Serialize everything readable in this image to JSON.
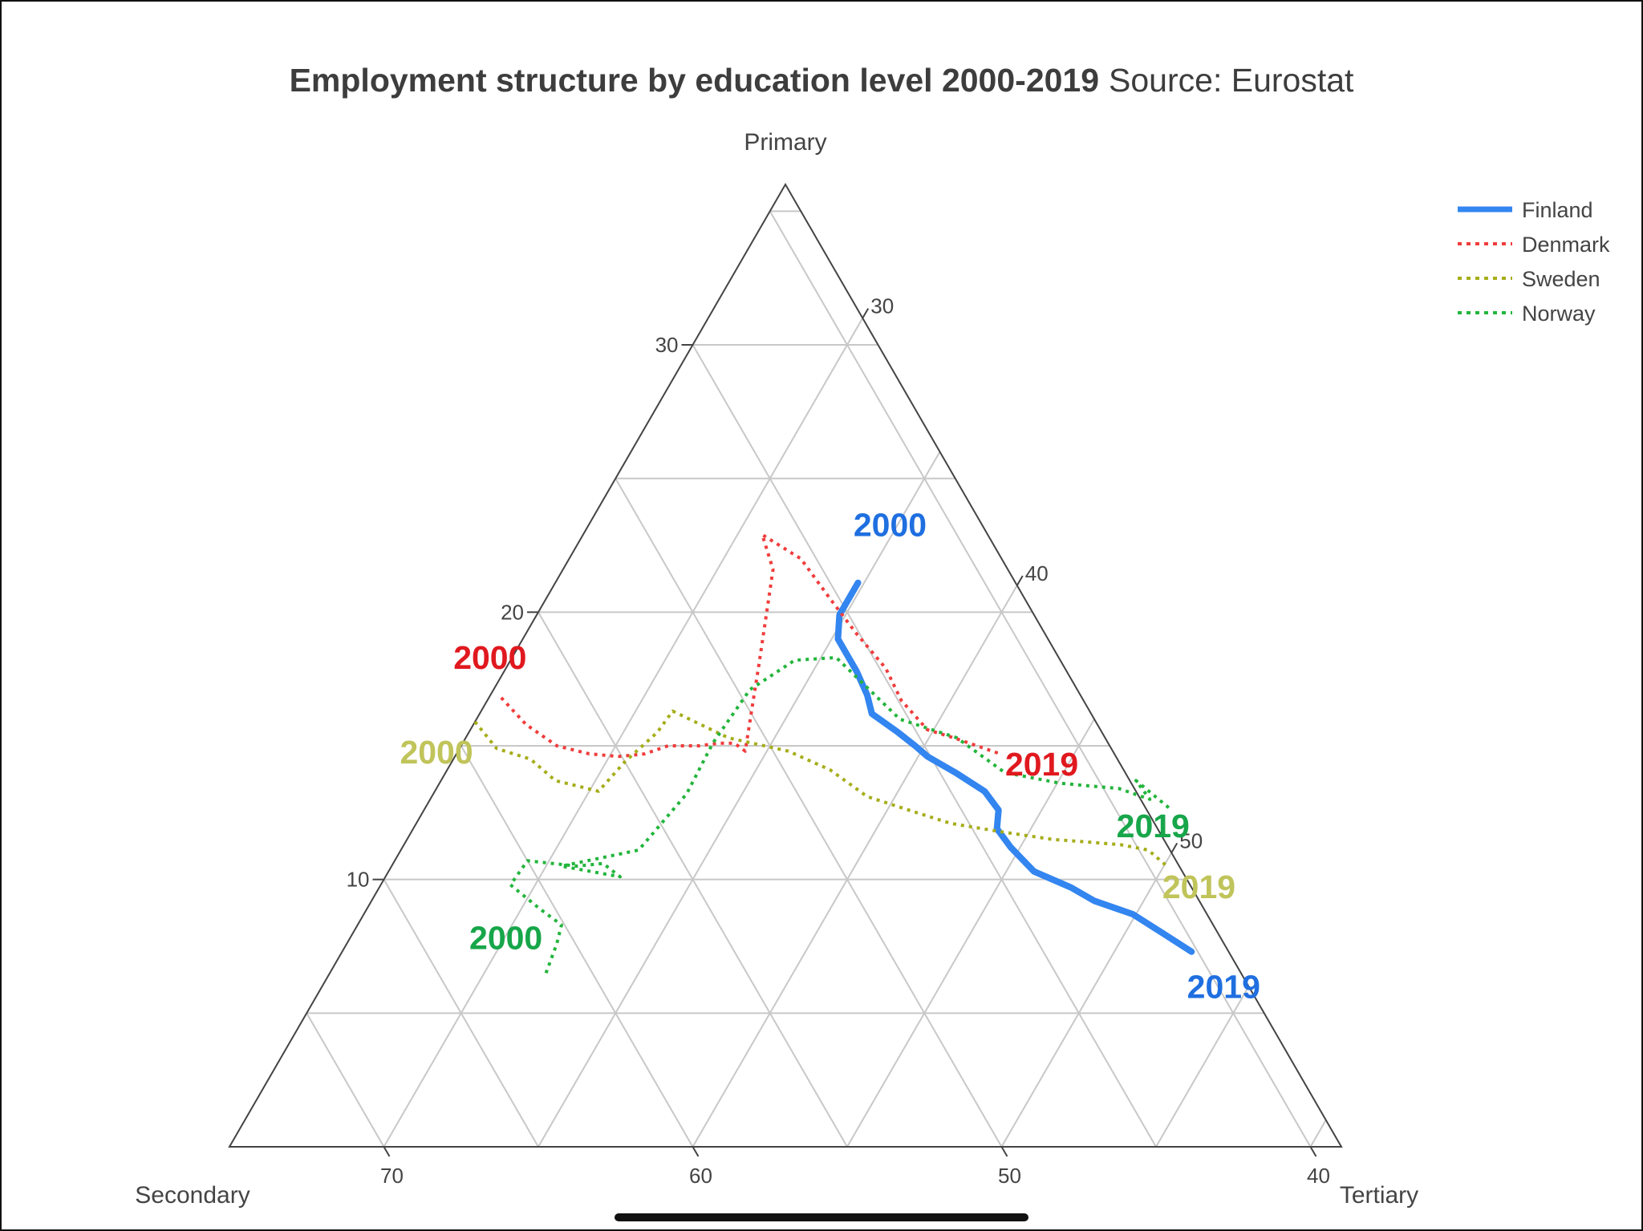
{
  "chart_data": {
    "type": "ternary-line",
    "title": "Employment structure by education level 2000-2019",
    "subtitle": "Source: Eurostat",
    "axes": {
      "top": {
        "label": "Primary",
        "range": [
          0,
          36
        ],
        "ticks": [
          10,
          20,
          30
        ]
      },
      "left": {
        "label": "Secondary",
        "range": [
          39,
          75
        ],
        "ticks": [
          40,
          50,
          60,
          70
        ]
      },
      "right": {
        "label": "Tertiary",
        "range": [
          25,
          61
        ],
        "ticks": [
          30,
          40,
          50
        ]
      }
    },
    "grid": true,
    "legend_position": "top-right",
    "series": [
      {
        "name": "Finland",
        "color": "#3385f0",
        "line": "solid",
        "start_label": "2000",
        "end_label": "2019",
        "points": [
          {
            "primary": 21.1,
            "secondary": 44.1,
            "tertiary": 34.8
          },
          {
            "primary": 20.5,
            "secondary": 44.7,
            "tertiary": 34.8
          },
          {
            "primary": 19.9,
            "secondary": 45.3,
            "tertiary": 34.8
          },
          {
            "primary": 19.0,
            "secondary": 45.8,
            "tertiary": 35.2
          },
          {
            "primary": 18.4,
            "secondary": 45.8,
            "tertiary": 35.8
          },
          {
            "primary": 17.8,
            "secondary": 45.8,
            "tertiary": 36.4
          },
          {
            "primary": 16.9,
            "secondary": 45.9,
            "tertiary": 37.2
          },
          {
            "primary": 16.2,
            "secondary": 46.1,
            "tertiary": 37.7
          },
          {
            "primary": 15.5,
            "secondary": 45.6,
            "tertiary": 38.9
          },
          {
            "primary": 15.0,
            "secondary": 45.3,
            "tertiary": 39.7
          },
          {
            "primary": 14.6,
            "secondary": 45.1,
            "tertiary": 40.3
          },
          {
            "primary": 14.0,
            "secondary": 44.5,
            "tertiary": 41.5
          },
          {
            "primary": 13.3,
            "secondary": 43.9,
            "tertiary": 42.8
          },
          {
            "primary": 12.6,
            "secondary": 43.8,
            "tertiary": 43.6
          },
          {
            "primary": 11.9,
            "secondary": 44.2,
            "tertiary": 43.9
          },
          {
            "primary": 11.2,
            "secondary": 44.1,
            "tertiary": 44.7
          },
          {
            "primary": 10.3,
            "secondary": 43.8,
            "tertiary": 45.9
          },
          {
            "primary": 9.7,
            "secondary": 42.9,
            "tertiary": 47.4
          },
          {
            "primary": 9.2,
            "secondary": 42.4,
            "tertiary": 48.4
          },
          {
            "primary": 8.7,
            "secondary": 41.4,
            "tertiary": 49.9
          },
          {
            "primary": 8.0,
            "secondary": 40.8,
            "tertiary": 51.2
          },
          {
            "primary": 7.3,
            "secondary": 40.2,
            "tertiary": 52.5
          }
        ]
      },
      {
        "name": "Denmark",
        "color": "#f03c3c",
        "line": "dotted",
        "start_label": "2000",
        "end_label": "2019",
        "points": [
          {
            "primary": 16.8,
            "secondary": 57.8,
            "tertiary": 25.4
          },
          {
            "primary": 15.8,
            "secondary": 57.5,
            "tertiary": 26.7
          },
          {
            "primary": 15.0,
            "secondary": 56.9,
            "tertiary": 28.1
          },
          {
            "primary": 14.7,
            "secondary": 56.0,
            "tertiary": 29.3
          },
          {
            "primary": 14.6,
            "secondary": 55.1,
            "tertiary": 30.3
          },
          {
            "primary": 14.7,
            "secondary": 54.2,
            "tertiary": 31.1
          },
          {
            "primary": 15.0,
            "secondary": 53.3,
            "tertiary": 31.7
          },
          {
            "primary": 15.0,
            "secondary": 52.3,
            "tertiary": 32.7
          },
          {
            "primary": 15.1,
            "secondary": 51.6,
            "tertiary": 33.3
          },
          {
            "primary": 15.1,
            "secondary": 51.1,
            "tertiary": 33.8
          },
          {
            "primary": 14.8,
            "secondary": 50.9,
            "tertiary": 34.3
          },
          {
            "primary": 18.1,
            "secondary": 48.8,
            "tertiary": 33.1
          },
          {
            "primary": 21.6,
            "secondary": 46.6,
            "tertiary": 31.8
          },
          {
            "primary": 22.9,
            "secondary": 46.3,
            "tertiary": 30.8
          },
          {
            "primary": 22.0,
            "secondary": 45.5,
            "tertiary": 32.5
          },
          {
            "primary": 20.5,
            "secondary": 45.3,
            "tertiary": 34.2
          },
          {
            "primary": 19.2,
            "secondary": 45.1,
            "tertiary": 35.7
          },
          {
            "primary": 17.9,
            "secondary": 44.8,
            "tertiary": 37.3
          },
          {
            "primary": 16.7,
            "secondary": 44.9,
            "tertiary": 38.4
          },
          {
            "primary": 15.6,
            "secondary": 44.6,
            "tertiary": 39.8
          },
          {
            "primary": 15.3,
            "secondary": 43.9,
            "tertiary": 40.8
          },
          {
            "primary": 14.7,
            "secondary": 42.7,
            "tertiary": 42.6
          }
        ]
      },
      {
        "name": "Sweden",
        "color": "#a6ad1a",
        "line": "dotted",
        "start_label": "2000",
        "end_label": "2019",
        "points": [
          {
            "primary": 15.9,
            "secondary": 59.1,
            "tertiary": 25.0
          },
          {
            "primary": 14.9,
            "secondary": 58.9,
            "tertiary": 26.2
          },
          {
            "primary": 14.5,
            "secondary": 58.0,
            "tertiary": 27.5
          },
          {
            "primary": 13.7,
            "secondary": 57.6,
            "tertiary": 28.7
          },
          {
            "primary": 13.3,
            "secondary": 56.4,
            "tertiary": 30.3
          },
          {
            "primary": 14.4,
            "secondary": 55.0,
            "tertiary": 30.6
          },
          {
            "primary": 15.5,
            "secondary": 53.4,
            "tertiary": 31.1
          },
          {
            "primary": 16.3,
            "secondary": 52.5,
            "tertiary": 31.2
          },
          {
            "primary": 15.3,
            "secondary": 51.2,
            "tertiary": 33.5
          },
          {
            "primary": 14.8,
            "secondary": 49.5,
            "tertiary": 35.7
          },
          {
            "primary": 14.1,
            "secondary": 48.5,
            "tertiary": 37.4
          },
          {
            "primary": 13.1,
            "secondary": 47.8,
            "tertiary": 39.1
          },
          {
            "primary": 12.5,
            "secondary": 46.5,
            "tertiary": 41.0
          },
          {
            "primary": 12.1,
            "secondary": 45.6,
            "tertiary": 42.3
          },
          {
            "primary": 11.8,
            "secondary": 44.2,
            "tertiary": 44.0
          },
          {
            "primary": 11.5,
            "secondary": 42.6,
            "tertiary": 45.9
          },
          {
            "primary": 11.4,
            "secondary": 41.5,
            "tertiary": 47.1
          },
          {
            "primary": 11.3,
            "secondary": 40.5,
            "tertiary": 48.2
          },
          {
            "primary": 11.1,
            "secondary": 39.7,
            "tertiary": 49.2
          },
          {
            "primary": 10.5,
            "secondary": 39.4,
            "tertiary": 50.1
          }
        ]
      },
      {
        "name": "Norway",
        "color": "#22b53c",
        "line": "dotted",
        "start_label": "2000",
        "end_label": "2019",
        "points": [
          {
            "primary": 6.5,
            "secondary": 61.5,
            "tertiary": 32.0
          },
          {
            "primary": 7.6,
            "secondary": 60.6,
            "tertiary": 31.8
          },
          {
            "primary": 8.3,
            "secondary": 60.1,
            "tertiary": 31.6
          },
          {
            "primary": 8.9,
            "secondary": 60.5,
            "tertiary": 30.6
          },
          {
            "primary": 9.8,
            "secondary": 61.0,
            "tertiary": 29.2
          },
          {
            "primary": 10.7,
            "secondary": 60.0,
            "tertiary": 29.3
          },
          {
            "primary": 10.5,
            "secondary": 58.5,
            "tertiary": 31.0
          },
          {
            "primary": 10.6,
            "secondary": 57.6,
            "tertiary": 31.8
          },
          {
            "primary": 10.1,
            "secondary": 57.3,
            "tertiary": 32.6
          },
          {
            "primary": 10.5,
            "secondary": 59.0,
            "tertiary": 30.5
          },
          {
            "primary": 11.1,
            "secondary": 56.2,
            "tertiary": 32.7
          },
          {
            "primary": 13.2,
            "secondary": 53.6,
            "tertiary": 33.2
          },
          {
            "primary": 15.1,
            "secondary": 51.8,
            "tertiary": 33.1
          },
          {
            "primary": 17.1,
            "secondary": 49.6,
            "tertiary": 33.3
          },
          {
            "primary": 18.2,
            "secondary": 47.6,
            "tertiary": 34.2
          },
          {
            "primary": 18.3,
            "secondary": 46.2,
            "tertiary": 35.5
          },
          {
            "primary": 16.0,
            "secondary": 45.3,
            "tertiary": 38.7
          },
          {
            "primary": 15.3,
            "secondary": 43.8,
            "tertiary": 40.9
          },
          {
            "primary": 14.0,
            "secondary": 42.9,
            "tertiary": 43.1
          },
          {
            "primary": 13.6,
            "secondary": 41.3,
            "tertiary": 45.1
          },
          {
            "primary": 13.4,
            "secondary": 39.5,
            "tertiary": 47.1
          },
          {
            "primary": 13.0,
            "secondary": 38.7,
            "tertiary": 48.3
          },
          {
            "primary": 13.7,
            "secondary": 38.8,
            "tertiary": 47.5
          },
          {
            "primary": 12.6,
            "secondary": 38.2,
            "tertiary": 49.2
          }
        ]
      }
    ]
  }
}
